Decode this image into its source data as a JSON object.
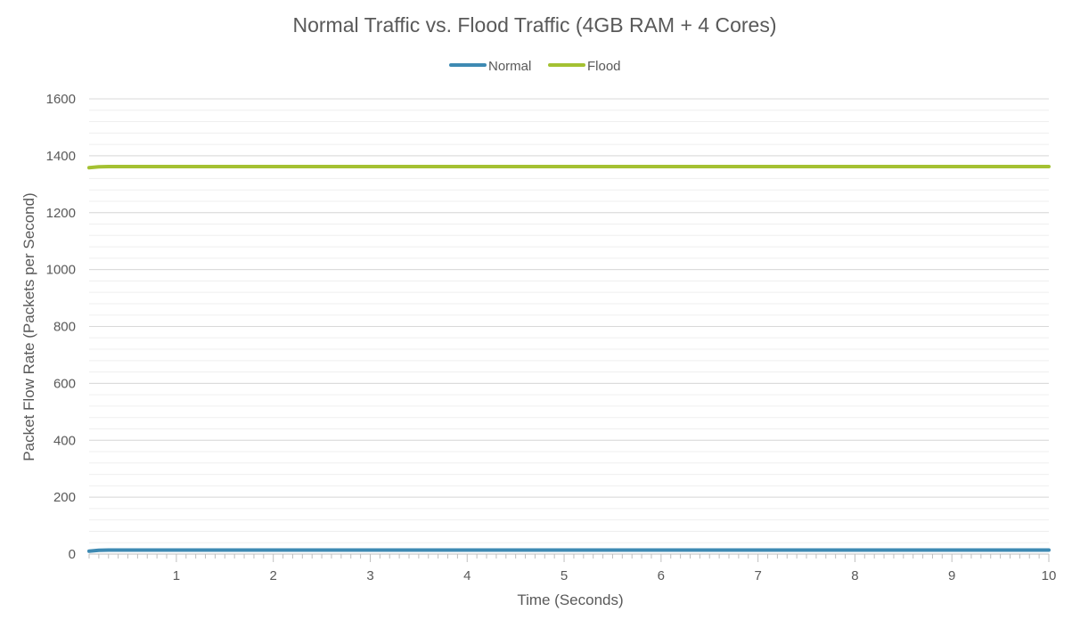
{
  "chart_data": {
    "type": "line",
    "title": "Normal Traffic vs. Flood Traffic (4GB RAM + 4 Cores)",
    "xlabel": "Time (Seconds)",
    "ylabel": "Packet Flow Rate (Packets per Second)",
    "xlim": [
      0.1,
      10
    ],
    "ylim": [
      0,
      1600
    ],
    "x_ticks": [
      1,
      2,
      3,
      4,
      5,
      6,
      7,
      8,
      9,
      10
    ],
    "y_ticks": [
      0,
      200,
      400,
      600,
      800,
      1000,
      1200,
      1400,
      1600
    ],
    "grid": true,
    "legend_position": "top",
    "series": [
      {
        "name": "Normal",
        "color": "#3E8AB3",
        "x": [
          0.1,
          0.2,
          0.3,
          1,
          2,
          3,
          4,
          5,
          6,
          7,
          8,
          9,
          10
        ],
        "values": [
          10,
          13,
          14,
          14,
          14,
          14,
          14,
          14,
          14,
          14,
          14,
          14,
          14
        ]
      },
      {
        "name": "Flood",
        "color": "#A4C132",
        "x": [
          0.1,
          0.2,
          0.3,
          1,
          2,
          3,
          4,
          5,
          6,
          7,
          8,
          9,
          10
        ],
        "values": [
          1358,
          1361,
          1362,
          1362,
          1362,
          1362,
          1362,
          1362,
          1362,
          1362,
          1362,
          1362,
          1362
        ]
      }
    ]
  }
}
